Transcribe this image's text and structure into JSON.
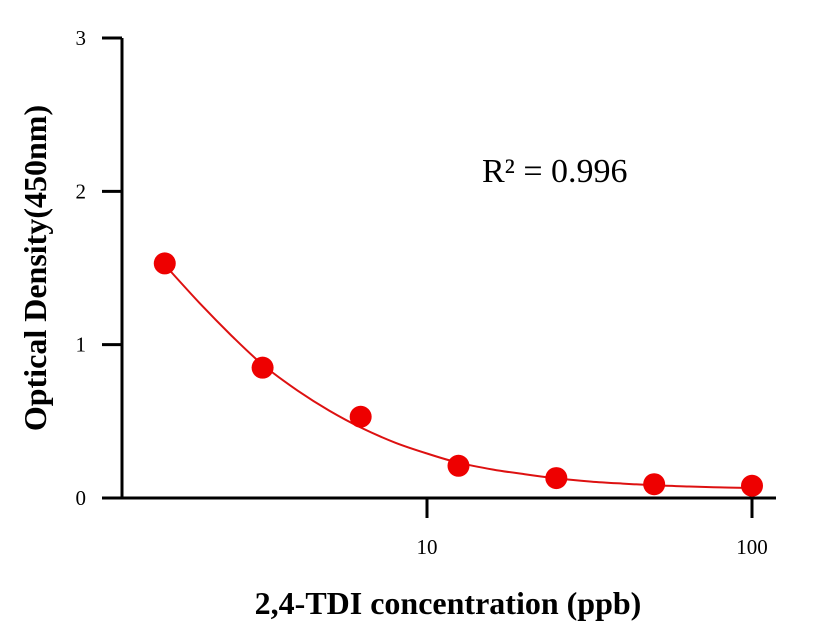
{
  "chart_data": {
    "type": "scatter",
    "title": "",
    "xlabel": "2,4-TDI concentration (ppb)",
    "ylabel": "Optical Density(450nm)",
    "x_scale": "log",
    "xlim": [
      1,
      115
    ],
    "ylim": [
      0,
      3
    ],
    "x_ticks": [
      10,
      100
    ],
    "x_tick_labels": [
      "10",
      "100"
    ],
    "y_ticks": [
      0,
      1,
      2,
      3
    ],
    "y_tick_labels": [
      "0",
      "1",
      "2",
      "3"
    ],
    "grid": false,
    "legend": "none",
    "annotation": "R² = 0.996",
    "colors": {
      "points": "#ee0000",
      "fit_line": "#dd1111",
      "axis": "#000000"
    },
    "series": [
      {
        "values_x": [
          1.56,
          3.12,
          6.25,
          12.5,
          25,
          50,
          100
        ],
        "values_y": [
          1.53,
          0.85,
          0.53,
          0.21,
          0.13,
          0.09,
          0.08
        ]
      }
    ],
    "fit_curve": {
      "x": [
        1.56,
        2.0,
        2.5,
        3.12,
        4.0,
        5.0,
        6.25,
        8.0,
        10.0,
        12.5,
        16.0,
        20.0,
        25.0,
        32.0,
        40.0,
        50.0,
        64.0,
        80.0,
        100.0
      ],
      "y": [
        1.52,
        1.27,
        1.06,
        0.87,
        0.7,
        0.57,
        0.46,
        0.36,
        0.29,
        0.23,
        0.185,
        0.155,
        0.128,
        0.107,
        0.094,
        0.083,
        0.075,
        0.069,
        0.065
      ]
    }
  }
}
